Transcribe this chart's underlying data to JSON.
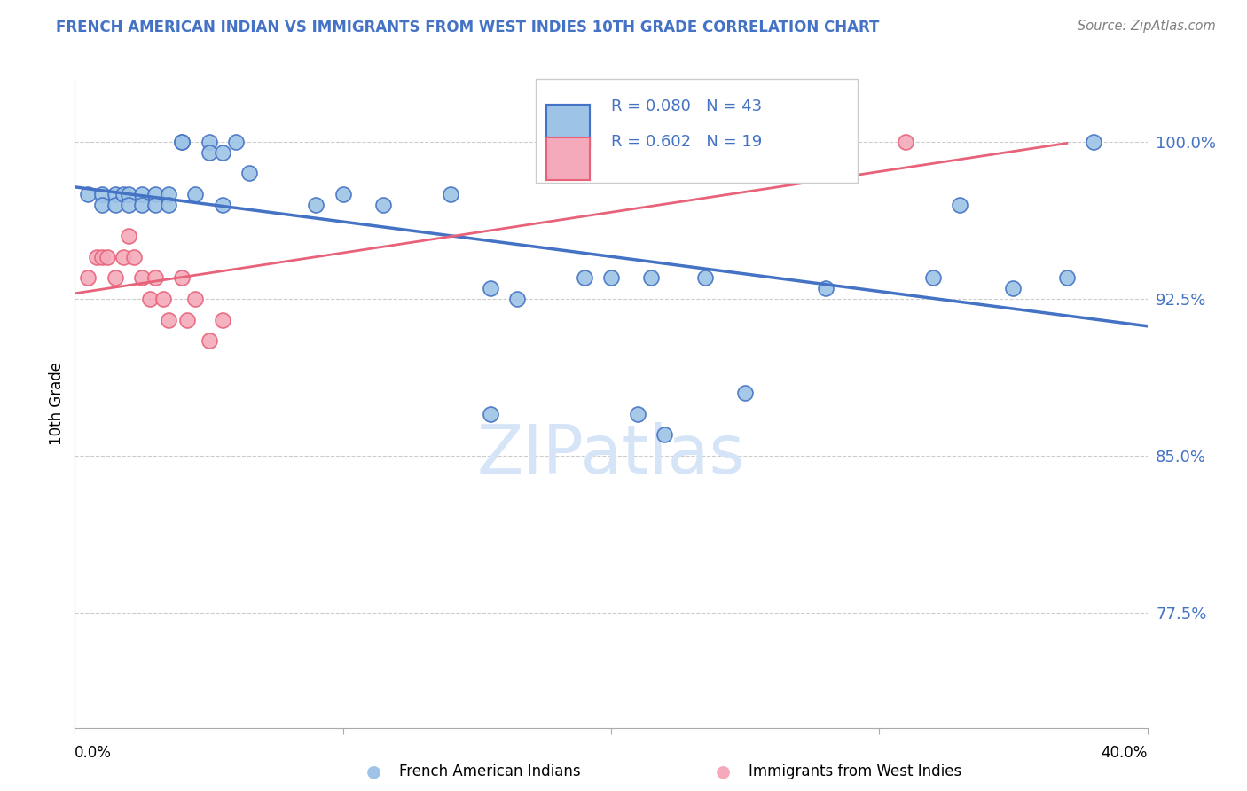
{
  "title": "FRENCH AMERICAN INDIAN VS IMMIGRANTS FROM WEST INDIES 10TH GRADE CORRELATION CHART",
  "source": "Source: ZipAtlas.com",
  "ylabel": "10th Grade",
  "ylabel_ticks": [
    "77.5%",
    "85.0%",
    "92.5%",
    "100.0%"
  ],
  "ylabel_values": [
    0.775,
    0.85,
    0.925,
    1.0
  ],
  "xlim": [
    0.0,
    0.4
  ],
  "ylim": [
    0.72,
    1.03
  ],
  "blue_scatter_x": [
    0.005,
    0.01,
    0.01,
    0.015,
    0.015,
    0.018,
    0.02,
    0.02,
    0.025,
    0.025,
    0.03,
    0.03,
    0.035,
    0.035,
    0.04,
    0.04,
    0.045,
    0.05,
    0.05,
    0.055,
    0.055,
    0.06,
    0.065,
    0.09,
    0.1,
    0.115,
    0.14,
    0.155,
    0.155,
    0.165,
    0.19,
    0.2,
    0.21,
    0.215,
    0.22,
    0.235,
    0.25,
    0.28,
    0.32,
    0.33,
    0.35,
    0.37,
    0.38
  ],
  "blue_scatter_y": [
    0.975,
    0.975,
    0.97,
    0.975,
    0.97,
    0.975,
    0.975,
    0.97,
    0.975,
    0.97,
    0.975,
    0.97,
    0.975,
    0.97,
    1.0,
    1.0,
    0.975,
    1.0,
    0.995,
    0.995,
    0.97,
    1.0,
    0.985,
    0.97,
    0.975,
    0.97,
    0.975,
    0.93,
    0.87,
    0.925,
    0.935,
    0.935,
    0.87,
    0.935,
    0.86,
    0.935,
    0.88,
    0.93,
    0.935,
    0.97,
    0.93,
    0.935,
    1.0
  ],
  "pink_scatter_x": [
    0.005,
    0.008,
    0.01,
    0.012,
    0.015,
    0.018,
    0.02,
    0.022,
    0.025,
    0.028,
    0.03,
    0.033,
    0.035,
    0.04,
    0.042,
    0.045,
    0.05,
    0.055,
    0.31
  ],
  "pink_scatter_y": [
    0.935,
    0.945,
    0.945,
    0.945,
    0.935,
    0.945,
    0.955,
    0.945,
    0.935,
    0.925,
    0.935,
    0.925,
    0.915,
    0.935,
    0.915,
    0.925,
    0.905,
    0.915,
    1.0
  ],
  "blue_R": 0.08,
  "blue_N": 43,
  "pink_R": 0.602,
  "pink_N": 19,
  "blue_line_color": "#4472C4",
  "pink_line_color": "#E8627A",
  "blue_scatter_facecolor": "#9DC3E6",
  "pink_scatter_facecolor": "#F4AABA",
  "grid_color": "#CCCCCC",
  "tick_label_color": "#4472C4",
  "watermark_color": "#D6E4F7",
  "title_color": "#4472C4",
  "source_color": "#808080",
  "legend_R_N_color": "#4472C4"
}
